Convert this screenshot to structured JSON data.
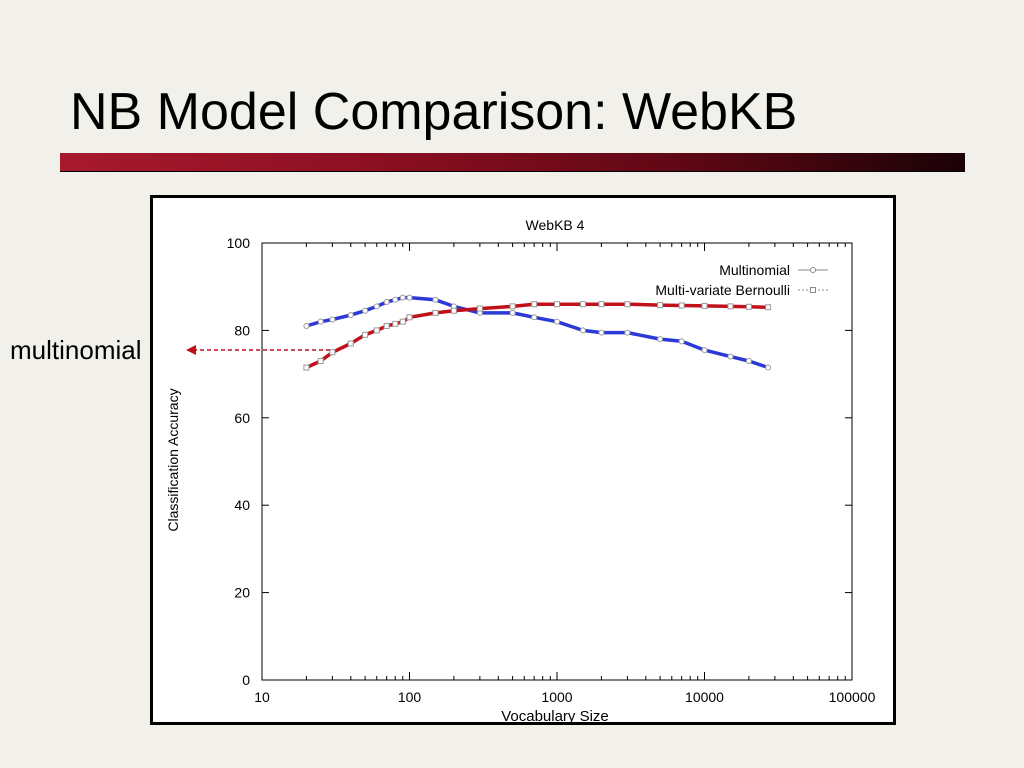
{
  "slide": {
    "title": "NB Model Comparison: WebKB",
    "callout_label": "multinomial"
  },
  "colors": {
    "background": "#f2f0eb",
    "accent_bar_start": "#a8192e",
    "accent_bar_end": "#1a0206",
    "multinomial_highlight": "#2b3ad6",
    "bernoulli_highlight": "#c0111a",
    "callout_arrow": "#c0111a"
  },
  "chart_data": {
    "type": "line",
    "title": "WebKB 4",
    "xlabel": "Vocabulary Size",
    "ylabel": "Classification Accuracy",
    "xscale": "log",
    "xlim": [
      10,
      100000
    ],
    "ylim": [
      0,
      100
    ],
    "xticks": [
      10,
      100,
      1000,
      10000,
      100000
    ],
    "xtick_labels": [
      "10",
      "100",
      "1000",
      "10000",
      "100000"
    ],
    "yticks": [
      0,
      20,
      40,
      60,
      80,
      100
    ],
    "ytick_labels": [
      "0",
      "20",
      "40",
      "60",
      "80",
      "100"
    ],
    "legend_position": "top-right",
    "series": [
      {
        "name": "Multinomial",
        "marker": "circle",
        "x": [
          20,
          25,
          30,
          40,
          50,
          60,
          70,
          80,
          90,
          100,
          150,
          200,
          300,
          500,
          700,
          1000,
          1500,
          2000,
          3000,
          5000,
          7000,
          10000,
          15000,
          20000,
          27000
        ],
        "y": [
          81,
          82,
          82.5,
          83.5,
          84.5,
          85.5,
          86.5,
          87,
          87.5,
          87.5,
          87,
          85.5,
          84,
          84,
          83,
          82,
          80,
          79.5,
          79.5,
          78,
          77.5,
          75.5,
          74,
          73,
          71.5
        ]
      },
      {
        "name": "Multi-variate Bernoulli",
        "marker": "square",
        "x": [
          20,
          25,
          30,
          40,
          50,
          60,
          70,
          80,
          90,
          100,
          150,
          200,
          300,
          500,
          700,
          1000,
          1500,
          2000,
          3000,
          5000,
          7000,
          10000,
          15000,
          20000,
          27000
        ],
        "y": [
          71.5,
          73,
          75,
          77,
          79,
          80,
          81,
          81.5,
          82,
          83,
          84,
          84.5,
          85,
          85.5,
          86,
          86,
          86,
          86,
          86,
          85.8,
          85.7,
          85.6,
          85.5,
          85.4,
          85.3
        ]
      }
    ]
  }
}
